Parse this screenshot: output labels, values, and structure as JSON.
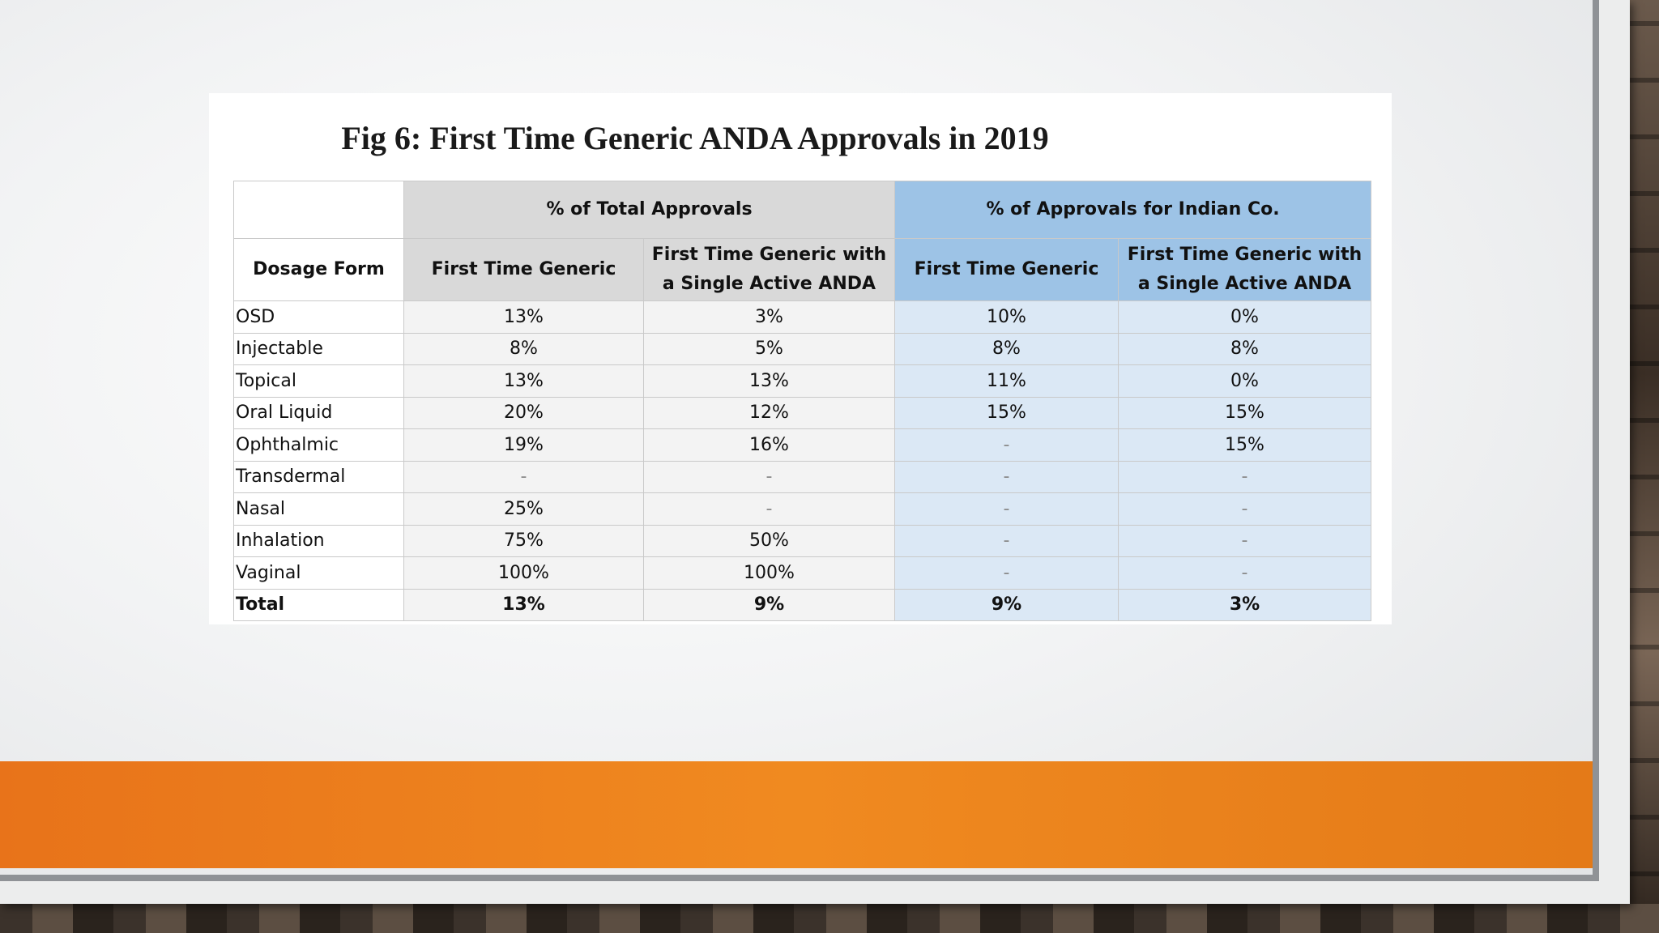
{
  "figure": {
    "title": "Fig 6: First Time Generic ANDA Approvals in 2019"
  },
  "table": {
    "dosage_header": "Dosage Form",
    "group_headers": [
      "% of Total Approvals",
      "% of Approvals for Indian Co."
    ],
    "sub_headers": [
      "First Time Generic",
      "First Time Generic with a Single Active ANDA",
      "First Time Generic",
      "First Time Generic with a Single Active ANDA"
    ],
    "rows": [
      {
        "form": "OSD",
        "values": [
          "13%",
          "3%",
          "10%",
          "0%"
        ]
      },
      {
        "form": "Injectable",
        "values": [
          "8%",
          "5%",
          "8%",
          "8%"
        ]
      },
      {
        "form": "Topical",
        "values": [
          "13%",
          "13%",
          "11%",
          "0%"
        ]
      },
      {
        "form": "Oral Liquid",
        "values": [
          "20%",
          "12%",
          "15%",
          "15%"
        ]
      },
      {
        "form": "Ophthalmic",
        "values": [
          "19%",
          "16%",
          "-",
          "15%"
        ]
      },
      {
        "form": "Transdermal",
        "values": [
          "-",
          "-",
          "-",
          "-"
        ]
      },
      {
        "form": "Nasal",
        "values": [
          "25%",
          "-",
          "-",
          "-"
        ]
      },
      {
        "form": "Inhalation",
        "values": [
          "75%",
          "50%",
          "-",
          "-"
        ]
      },
      {
        "form": "Vaginal",
        "values": [
          "100%",
          "100%",
          "-",
          "-"
        ]
      },
      {
        "form": "Total",
        "values": [
          "13%",
          "9%",
          "9%",
          "3%"
        ]
      }
    ]
  },
  "colors": {
    "accent_bar": "#f08a20",
    "indian_header": "#9dc3e6",
    "indian_body": "#dbe8f5",
    "total_header": "#d9d9d9"
  }
}
